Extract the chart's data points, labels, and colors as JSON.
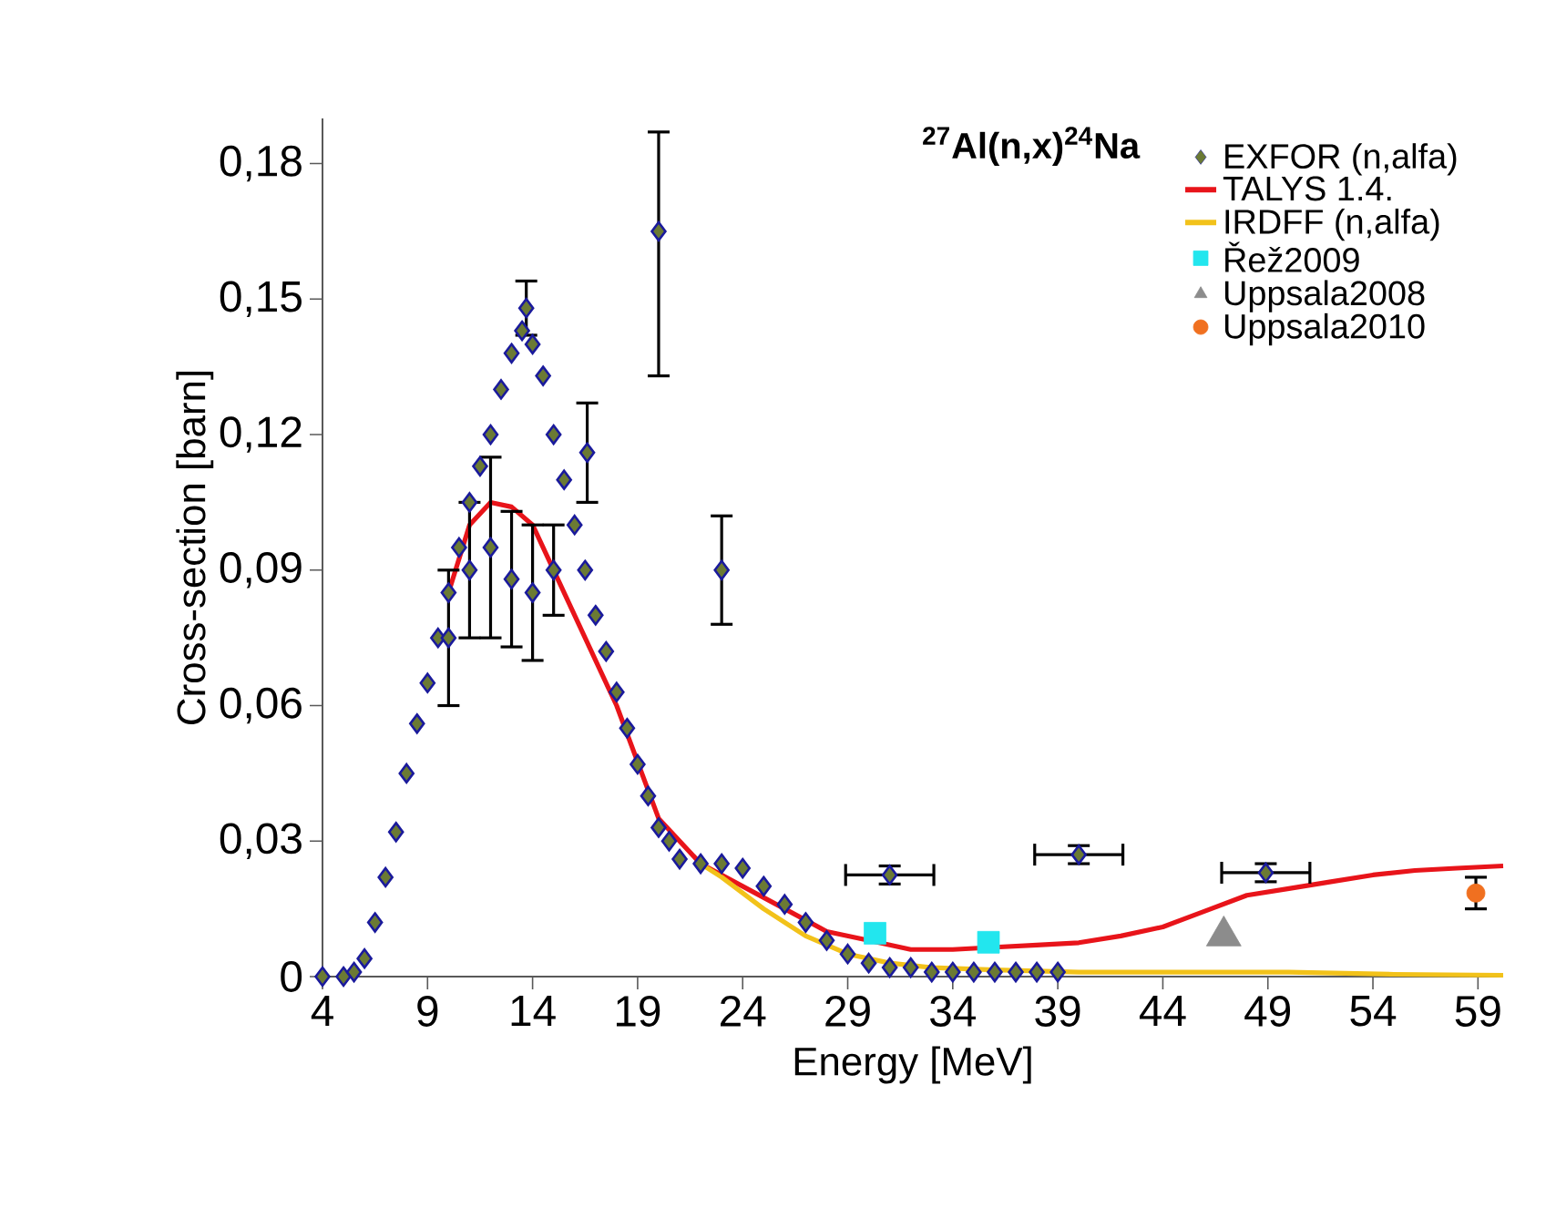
{
  "chart_data": {
    "type": "scatter",
    "title": "$^{27}$Al(n,x)$^{24}$Na",
    "xlabel": "Energy [MeV]",
    "ylabel": "Cross-section [barn]",
    "xlim": [
      4,
      60.2
    ],
    "ylim": [
      0,
      0.19
    ],
    "xticks": [
      4,
      9,
      14,
      19,
      24,
      29,
      34,
      39,
      44,
      49,
      54,
      59
    ],
    "yticks": [
      {
        "value": 0,
        "label": "0"
      },
      {
        "value": 0.03,
        "label": "0,03"
      },
      {
        "value": 0.06,
        "label": "0,06"
      },
      {
        "value": 0.09,
        "label": "0,09"
      },
      {
        "value": 0.12,
        "label": "0,12"
      },
      {
        "value": 0.15,
        "label": "0,15"
      },
      {
        "value": 0.18,
        "label": "0,18"
      }
    ],
    "legend": "top right",
    "grid": false,
    "series": [
      {
        "name": "EXFOR (n,alfa)",
        "marker": "diamond",
        "color": "#6b7a34",
        "x": [
          4,
          5,
          5.5,
          6,
          6.5,
          7,
          7.5,
          8,
          8.5,
          9,
          9.5,
          10,
          10.5,
          11,
          11.5,
          12,
          12.5,
          13,
          13.5,
          14,
          14.5,
          15,
          15.5,
          16,
          16.5,
          17,
          17.5,
          18,
          18.5,
          19,
          19.5,
          20,
          20.5,
          21,
          22,
          23,
          24,
          25,
          26,
          27,
          28,
          29,
          30,
          31,
          32,
          33,
          34,
          35,
          36,
          37,
          38,
          39,
          10,
          11,
          12,
          13,
          14,
          15,
          13.7,
          16.6,
          20,
          23,
          31,
          40,
          48.9
        ],
        "values": [
          0,
          0,
          0.001,
          0.004,
          0.012,
          0.022,
          0.032,
          0.045,
          0.056,
          0.065,
          0.075,
          0.085,
          0.095,
          0.105,
          0.113,
          0.12,
          0.13,
          0.138,
          0.143,
          0.14,
          0.133,
          0.12,
          0.11,
          0.1,
          0.09,
          0.08,
          0.072,
          0.063,
          0.055,
          0.047,
          0.04,
          0.033,
          0.03,
          0.026,
          0.025,
          0.025,
          0.024,
          0.02,
          0.016,
          0.012,
          0.008,
          0.005,
          0.003,
          0.002,
          0.002,
          0.001,
          0.001,
          0.001,
          0.001,
          0.001,
          0.001,
          0.001,
          0.075,
          0.09,
          0.095,
          0.088,
          0.085,
          0.09,
          0.148,
          0.116,
          0.165,
          0.09,
          0.0225,
          0.027,
          0.023
        ],
        "errors": [
          null,
          null,
          null,
          null,
          null,
          null,
          null,
          null,
          null,
          null,
          null,
          null,
          null,
          null,
          null,
          null,
          null,
          null,
          null,
          null,
          null,
          null,
          null,
          null,
          null,
          null,
          null,
          null,
          null,
          null,
          null,
          null,
          null,
          null,
          null,
          null,
          null,
          null,
          null,
          null,
          null,
          null,
          null,
          null,
          null,
          null,
          null,
          null,
          null,
          null,
          null,
          null,
          0.015,
          0.015,
          0.02,
          0.015,
          0.015,
          0.01,
          0.006,
          0.011,
          [
            0.133,
            0.187
          ],
          0.012,
          0.002,
          0.002,
          0.002
        ],
        "xerrors": [
          null,
          null,
          null,
          null,
          null,
          null,
          null,
          null,
          null,
          null,
          null,
          null,
          null,
          null,
          null,
          null,
          null,
          null,
          null,
          null,
          null,
          null,
          null,
          null,
          null,
          null,
          null,
          null,
          null,
          null,
          null,
          null,
          null,
          null,
          null,
          null,
          null,
          null,
          null,
          null,
          null,
          null,
          null,
          null,
          null,
          null,
          null,
          null,
          null,
          null,
          null,
          null,
          null,
          null,
          null,
          null,
          null,
          null,
          null,
          null,
          null,
          null,
          2.1,
          2.1,
          2.1
        ]
      },
      {
        "name": "TALYS 1.4.",
        "type": "line",
        "line_style": "solid",
        "color": "#e8141a",
        "x": [
          10,
          11,
          12,
          13,
          14,
          16,
          18,
          20,
          22,
          24,
          26,
          28,
          30,
          32,
          34,
          36,
          38,
          40,
          42,
          44,
          46,
          48,
          50,
          52,
          54,
          56,
          58,
          60.2
        ],
        "values": [
          0.085,
          0.1,
          0.105,
          0.104,
          0.1,
          0.08,
          0.06,
          0.035,
          0.025,
          0.02,
          0.015,
          0.01,
          0.008,
          0.006,
          0.006,
          0.0065,
          0.007,
          0.0075,
          0.009,
          0.011,
          0.0145,
          0.018,
          0.0195,
          0.021,
          0.0225,
          0.0235,
          0.024,
          0.0245
        ]
      },
      {
        "name": "IRDFF (n,alfa)",
        "type": "line",
        "line_style": "solid",
        "color": "#f2c21a",
        "x": [
          22,
          23,
          25,
          27,
          29,
          31,
          33,
          36,
          40,
          45,
          50,
          55,
          60.2
        ],
        "values": [
          0.025,
          0.022,
          0.015,
          0.009,
          0.005,
          0.003,
          0.002,
          0.0015,
          0.001,
          0.001,
          0.001,
          0.0005,
          0.0003
        ]
      },
      {
        "name": "Řež2009",
        "marker": "square",
        "color": "#22e6ee",
        "x": [
          30.3,
          35.7
        ],
        "values": [
          0.0096,
          0.0076
        ]
      },
      {
        "name": "Uppsala2008",
        "marker": "triangle",
        "color": "#8c8c8c",
        "x": [
          46.9
        ],
        "values": [
          0.009
        ]
      },
      {
        "name": "Uppsala2010",
        "marker": "circle",
        "color": "#f07020",
        "x": [
          58.9
        ],
        "values": [
          0.0185
        ],
        "errors": [
          0.0035
        ]
      }
    ]
  }
}
